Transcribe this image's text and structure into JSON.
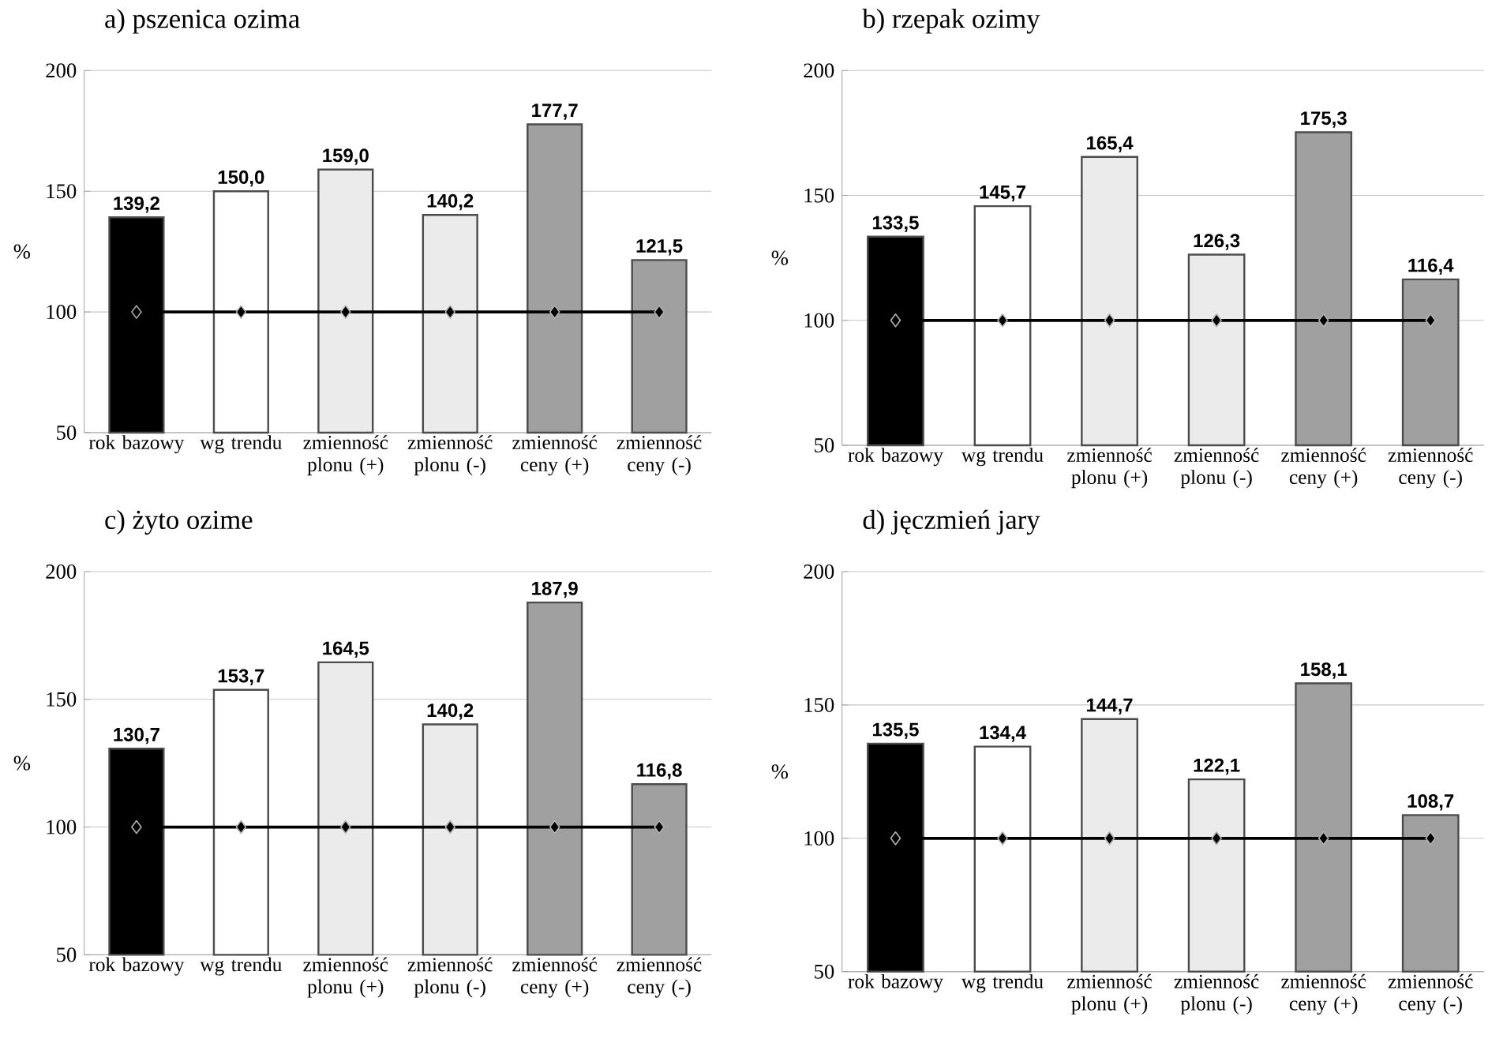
{
  "chart_data": [
    {
      "type": "bar",
      "title": "a) pszenica ozima",
      "ylabel": "%",
      "categories": [
        "rok bazowy",
        "wg trendu",
        "zmienność plonu (+)",
        "zmienność plonu (-)",
        "zmienność ceny (+)",
        "zmienność ceny (-)"
      ],
      "ylim": [
        50,
        200
      ],
      "yticks": [
        50,
        100,
        150,
        200
      ],
      "grid": "y",
      "series": [
        {
          "colors": [
            "#000000",
            "#ffffff",
            "#ebebeb",
            "#ebebeb",
            "#a0a0a0",
            "#a0a0a0"
          ],
          "values": [
            139.2,
            150.0,
            159.0,
            140.2,
            177.7,
            121.5
          ],
          "value_labels": [
            "139,2",
            "150,0",
            "159,0",
            "140,2",
            "177,7",
            "121,5"
          ]
        },
        {
          "type": "line",
          "color": "#000000",
          "marker": "diamond",
          "values": [
            100,
            100,
            100,
            100,
            100,
            100
          ]
        }
      ]
    },
    {
      "type": "bar",
      "title": "b) rzepak ozimy",
      "ylabel": "%",
      "categories": [
        "rok bazowy",
        "wg trendu",
        "zmienność plonu (+)",
        "zmienność plonu (-)",
        "zmienność ceny (+)",
        "zmienność ceny (-)"
      ],
      "ylim": [
        50,
        200
      ],
      "yticks": [
        50,
        100,
        150,
        200
      ],
      "grid": "y",
      "series": [
        {
          "colors": [
            "#000000",
            "#ffffff",
            "#ebebeb",
            "#ebebeb",
            "#a0a0a0",
            "#a0a0a0"
          ],
          "values": [
            133.5,
            145.7,
            165.4,
            126.3,
            175.3,
            116.4
          ],
          "value_labels": [
            "133,5",
            "145,7",
            "165,4",
            "126,3",
            "175,3",
            "116,4"
          ]
        },
        {
          "type": "line",
          "color": "#000000",
          "marker": "diamond",
          "values": [
            100,
            100,
            100,
            100,
            100,
            100
          ]
        }
      ]
    },
    {
      "type": "bar",
      "title": "c) żyto ozime",
      "ylabel": "%",
      "categories": [
        "rok bazowy",
        "wg trendu",
        "zmienność plonu (+)",
        "zmienność plonu (-)",
        "zmienność ceny (+)",
        "zmienność ceny (-)"
      ],
      "ylim": [
        50,
        200
      ],
      "yticks": [
        50,
        100,
        150,
        200
      ],
      "grid": "y",
      "series": [
        {
          "colors": [
            "#000000",
            "#ffffff",
            "#ebebeb",
            "#ebebeb",
            "#a0a0a0",
            "#a0a0a0"
          ],
          "values": [
            130.7,
            153.7,
            164.5,
            140.2,
            187.9,
            116.8
          ],
          "value_labels": [
            "130,7",
            "153,7",
            "164,5",
            "140,2",
            "187,9",
            "116,8"
          ]
        },
        {
          "type": "line",
          "color": "#000000",
          "marker": "diamond",
          "values": [
            100,
            100,
            100,
            100,
            100,
            100
          ]
        }
      ]
    },
    {
      "type": "bar",
      "title": "d) jęczmień jary",
      "ylabel": "%",
      "categories": [
        "rok bazowy",
        "wg trendu",
        "zmienność plonu (+)",
        "zmienność plonu (-)",
        "zmienność ceny (+)",
        "zmienność ceny (-)"
      ],
      "ylim": [
        50,
        200
      ],
      "yticks": [
        50,
        100,
        150,
        200
      ],
      "grid": "y",
      "series": [
        {
          "colors": [
            "#000000",
            "#ffffff",
            "#ebebeb",
            "#ebebeb",
            "#a0a0a0",
            "#a0a0a0"
          ],
          "values": [
            135.5,
            134.4,
            144.7,
            122.1,
            158.1,
            108.7
          ],
          "value_labels": [
            "135,5",
            "134,4",
            "144,7",
            "122,1",
            "158,1",
            "108,7"
          ]
        },
        {
          "type": "line",
          "color": "#000000",
          "marker": "diamond",
          "values": [
            100,
            100,
            100,
            100,
            100,
            100
          ]
        }
      ]
    }
  ]
}
